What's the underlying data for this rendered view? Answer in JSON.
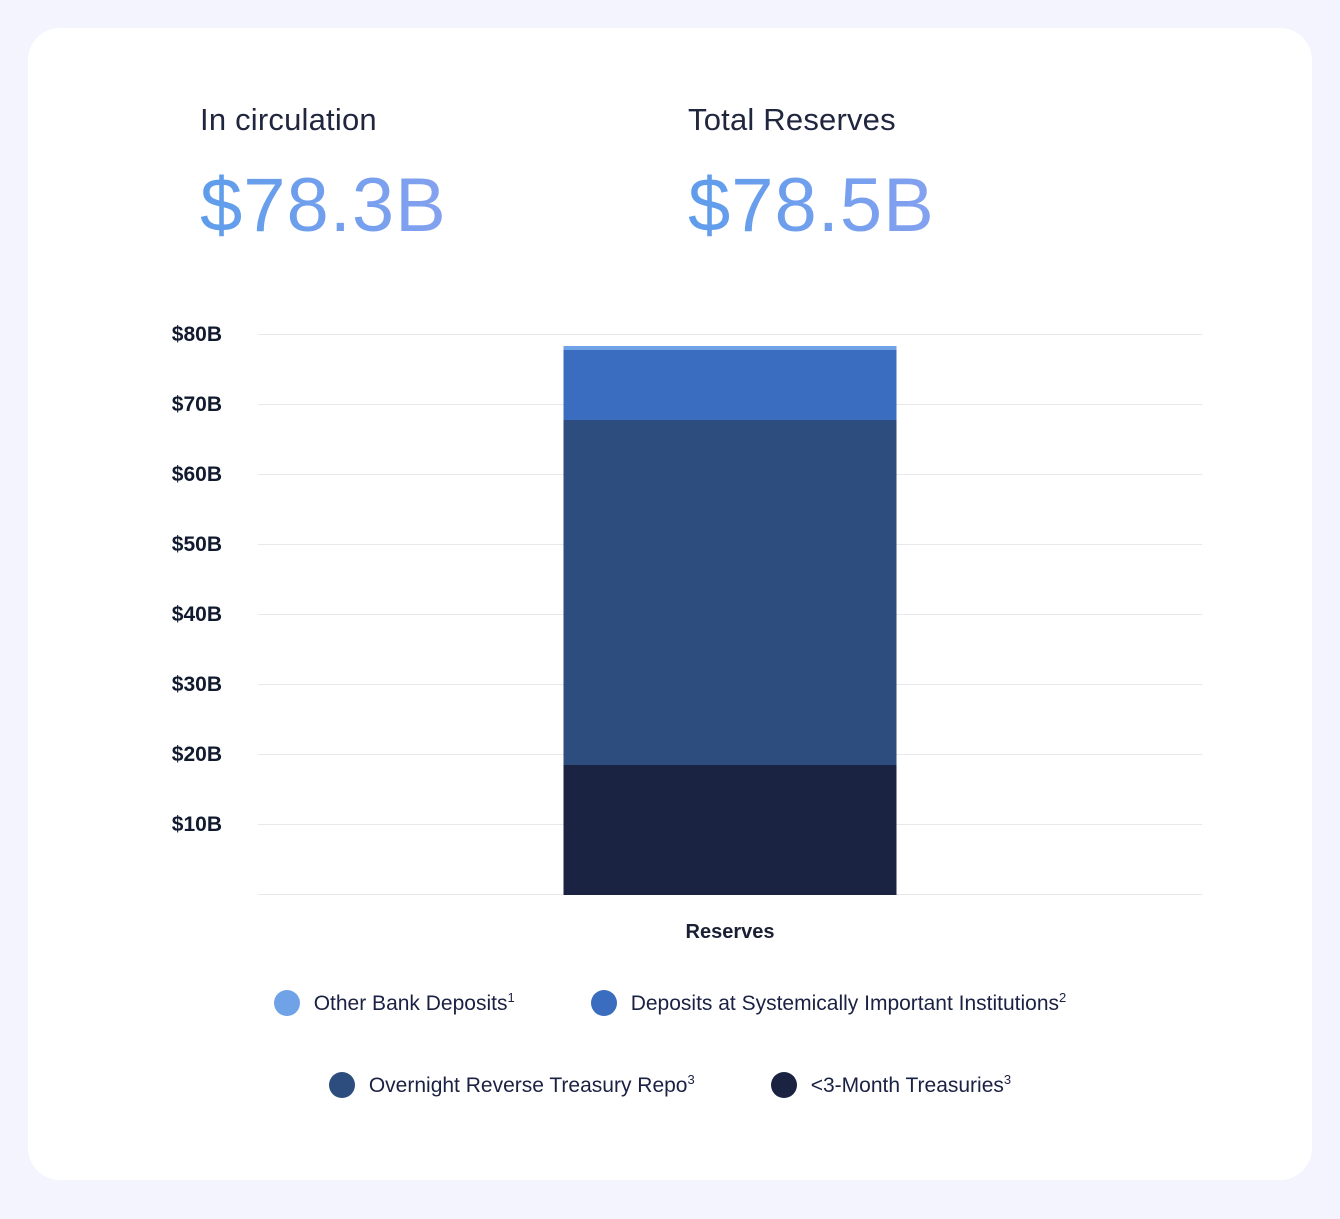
{
  "stats": [
    {
      "label": "In circulation",
      "value": "$78.3B"
    },
    {
      "label": "Total Reserves",
      "value": "$78.5B"
    }
  ],
  "chart_data": {
    "type": "bar",
    "variant": "stacked",
    "categories": [
      "Reserves"
    ],
    "series": [
      {
        "name": "Other Bank Deposits",
        "footnote": "1",
        "value": 0.7,
        "color": "#6fa2e6"
      },
      {
        "name": "Deposits at Systemically Important Institutions",
        "footnote": "2",
        "value": 9.9,
        "color": "#3a6cc0"
      },
      {
        "name": "Overnight Reverse Treasury Repo",
        "footnote": "3",
        "value": 49.3,
        "color": "#2c4d7e"
      },
      {
        "name": "<3-Month Treasuries",
        "footnote": "3",
        "value": 18.6,
        "color": "#1b2342"
      }
    ],
    "total": 78.5,
    "title": "",
    "xlabel": "Reserves",
    "ylabel": "",
    "ylim": [
      0,
      80
    ],
    "y_ticks": [
      {
        "label": "$80B",
        "value": 80
      },
      {
        "label": "$70B",
        "value": 70
      },
      {
        "label": "$60B",
        "value": 60
      },
      {
        "label": "$50B",
        "value": 50
      },
      {
        "label": "$40B",
        "value": 40
      },
      {
        "label": "$30B",
        "value": 30
      },
      {
        "label": "$20B",
        "value": 20
      },
      {
        "label": "$10B",
        "value": 10
      }
    ],
    "grid": true,
    "legend_position": "bottom"
  }
}
